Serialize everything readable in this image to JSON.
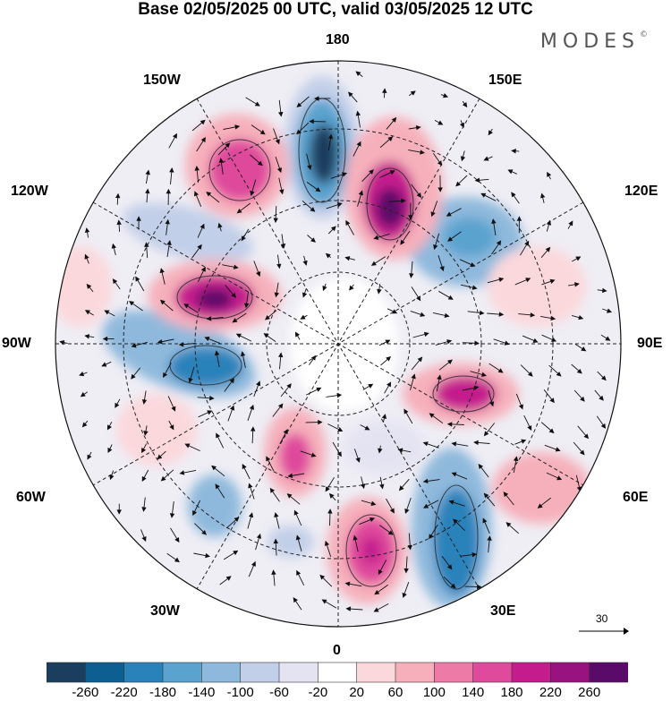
{
  "title": "Base 02/05/2025 00 UTC, valid 03/05/2025 12 UTC",
  "brand": "MODES",
  "brand_mark": "©",
  "map": {
    "projection": "north-polar-stereographic",
    "longitude_labels": {
      "top": "180",
      "top_left": "150W",
      "top_right": "150E",
      "upper_left": "120W",
      "upper_right": "120E",
      "left": "90W",
      "right": "90E",
      "lower_left": "60W",
      "lower_right": "60E",
      "bottom_left": "30W",
      "bottom_right": "30E",
      "bottom": "0"
    },
    "vector_reference": {
      "label": "30",
      "icon": "arrow-right-icon"
    },
    "graticule": "dashed-lines",
    "coastlines": true
  },
  "colorbar": {
    "tick_labels": [
      "-260",
      "-220",
      "-180",
      "-140",
      "-100",
      "-60",
      "-20",
      "20",
      "60",
      "100",
      "140",
      "180",
      "220",
      "260"
    ],
    "colors": [
      "#1b3d5e",
      "#0e5f91",
      "#2a82bb",
      "#5aa3cf",
      "#8fb9dc",
      "#c2cfe8",
      "#e4e3f2",
      "#ffffff",
      "#fbd8dc",
      "#f6b0bb",
      "#ee7aa8",
      "#df4a9c",
      "#c41c8d",
      "#981380",
      "#5a0a68"
    ]
  }
}
